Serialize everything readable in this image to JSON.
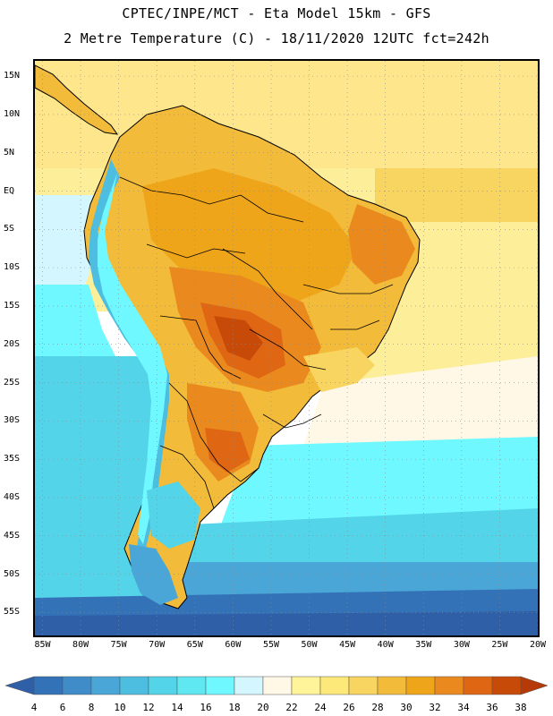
{
  "header": {
    "line1": "CPTEC/INPE/MCT -  Eta Model 15km - GFS",
    "line2": "2 Metre Temperature (C) - 18/11/2020 12UTC fct=242h"
  },
  "axes": {
    "lat_labels": [
      "15N",
      "10N",
      "5N",
      "EQ",
      "5S",
      "10S",
      "15S",
      "20S",
      "25S",
      "30S",
      "35S",
      "40S",
      "45S",
      "50S",
      "55S"
    ],
    "lat_values": [
      15,
      10,
      5,
      0,
      -5,
      -10,
      -15,
      -20,
      -25,
      -30,
      -35,
      -40,
      -45,
      -50,
      -55
    ],
    "lon_labels": [
      "85W",
      "80W",
      "75W",
      "70W",
      "65W",
      "60W",
      "55W",
      "50W",
      "45W",
      "40W",
      "35W",
      "30W",
      "25W",
      "20W"
    ],
    "lon_values": [
      -85,
      -80,
      -75,
      -70,
      -65,
      -60,
      -55,
      -50,
      -45,
      -40,
      -35,
      -30,
      -25,
      -20
    ],
    "lat_range": [
      -58,
      17
    ],
    "lon_range": [
      -86,
      -20
    ]
  },
  "colorbar": {
    "labels": [
      "4",
      "6",
      "8",
      "10",
      "12",
      "14",
      "16",
      "18",
      "20",
      "22",
      "24",
      "26",
      "28",
      "30",
      "32",
      "34",
      "36",
      "38"
    ],
    "colors": [
      "#2f5fa6",
      "#3472b8",
      "#3f8cc8",
      "#49a6d6",
      "#4dbedf",
      "#54d4e8",
      "#5fe8f2",
      "#6ff8ff",
      "#d4f6ff",
      "#fff8e6",
      "#fff49a",
      "#fde87a",
      "#f8d460",
      "#f2bb3a",
      "#efa51a",
      "#ea8a1e",
      "#df6612",
      "#c84a08",
      "#b53a08"
    ]
  },
  "map_colors": {
    "ocean_north_far": "#fde68c",
    "ocean_north_near": "#f8d460",
    "ocean_eq_east": "#fdee9a",
    "ocean_tropical_west": "#d4f6ff",
    "ocean_south_light": "#fff8e6",
    "ocean_cyan": "#6ff8ff",
    "ocean_light_blue": "#54d4e8",
    "ocean_mid_blue": "#49a6d6",
    "ocean_deep_blue": "#3472b8",
    "ocean_far_south": "#2f5fa6",
    "land_base": "#f2bb3a",
    "land_warm": "#efa51a",
    "land_hot": "#ea8a1e",
    "land_hottest": "#df6612",
    "land_peak": "#c84a08",
    "andes_cold": "#4dbedf",
    "andes_cool": "#6ff8ff",
    "patagonia_cold": "#49a6d6",
    "border_line": "#000000",
    "grid_line": "#8a8a8a"
  }
}
